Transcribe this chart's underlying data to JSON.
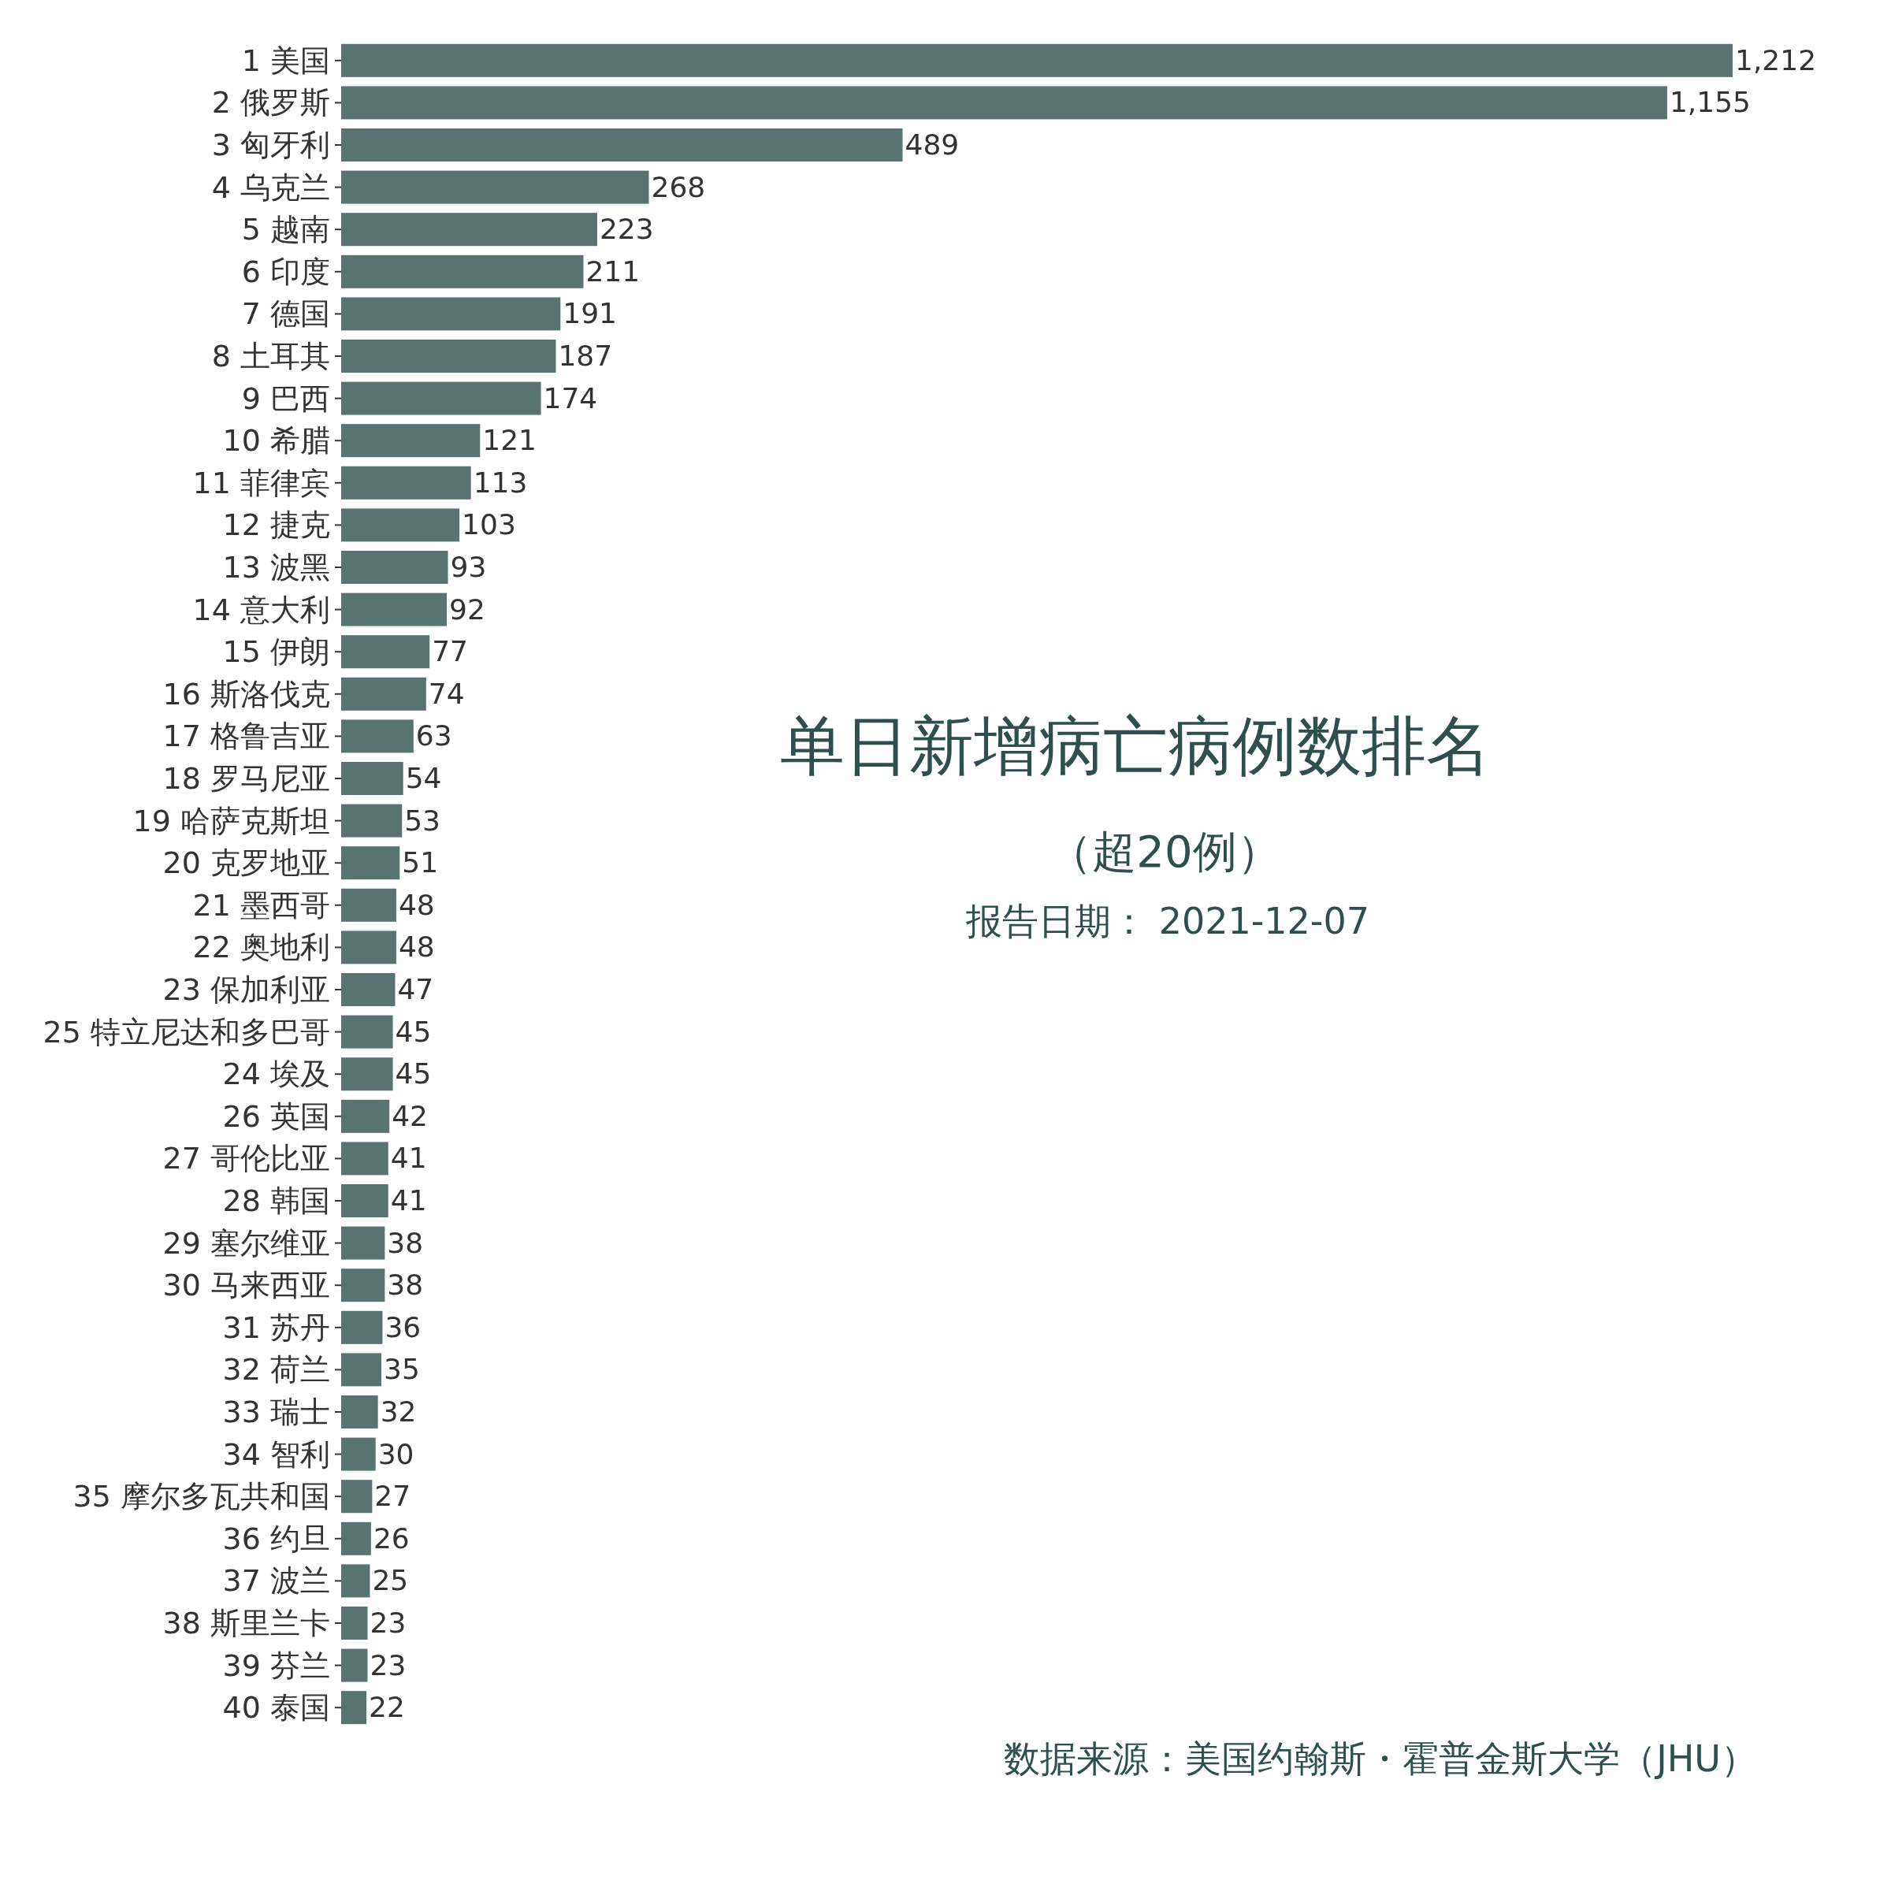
{
  "chart_data": {
    "type": "bar",
    "orientation": "horizontal",
    "title": "单日新增病亡病例数排名",
    "subtitle": "（超20例）",
    "annotations": [
      "报告日期： 2021-12-07",
      "数据来源：美国约翰斯・霍普金斯大学（JHU）"
    ],
    "categories": [
      "1 美国",
      "2 俄罗斯",
      "3 匈牙利",
      "4 乌克兰",
      "5 越南",
      "6 印度",
      "7 德国",
      "8 土耳其",
      "9 巴西",
      "10 希腊",
      "11 菲律宾",
      "12 捷克",
      "13 波黑",
      "14 意大利",
      "15 伊朗",
      "16 斯洛伐克",
      "17 格鲁吉亚",
      "18 罗马尼亚",
      "19 哈萨克斯坦",
      "20 克罗地亚",
      "21 墨西哥",
      "22 奥地利",
      "23 保加利亚",
      "25 特立尼达和多巴哥",
      "24 埃及",
      "26 英国",
      "27 哥伦比亚",
      "28 韩国",
      "29 塞尔维亚",
      "30 马来西亚",
      "31 苏丹",
      "32 荷兰",
      "33 瑞士",
      "34 智利",
      "35 摩尔多瓦共和国",
      "36 约旦",
      "37 波兰",
      "38 斯里兰卡",
      "39 芬兰",
      "40 泰国"
    ],
    "values": [
      1212,
      1155,
      489,
      268,
      223,
      211,
      191,
      187,
      174,
      121,
      113,
      103,
      93,
      92,
      77,
      74,
      63,
      54,
      53,
      51,
      48,
      48,
      47,
      45,
      45,
      42,
      41,
      41,
      38,
      38,
      36,
      35,
      32,
      30,
      27,
      26,
      25,
      23,
      23,
      22
    ],
    "value_labels": [
      "1,212",
      "1,155",
      "489",
      "268",
      "223",
      "211",
      "191",
      "187",
      "174",
      "121",
      "113",
      "103",
      "93",
      "92",
      "77",
      "74",
      "63",
      "54",
      "53",
      "51",
      "48",
      "48",
      "47",
      "45",
      "45",
      "42",
      "41",
      "41",
      "38",
      "38",
      "36",
      "35",
      "32",
      "30",
      "27",
      "26",
      "25",
      "23",
      "23",
      "22"
    ],
    "color": "#587371",
    "tick_labels": "y"
  }
}
